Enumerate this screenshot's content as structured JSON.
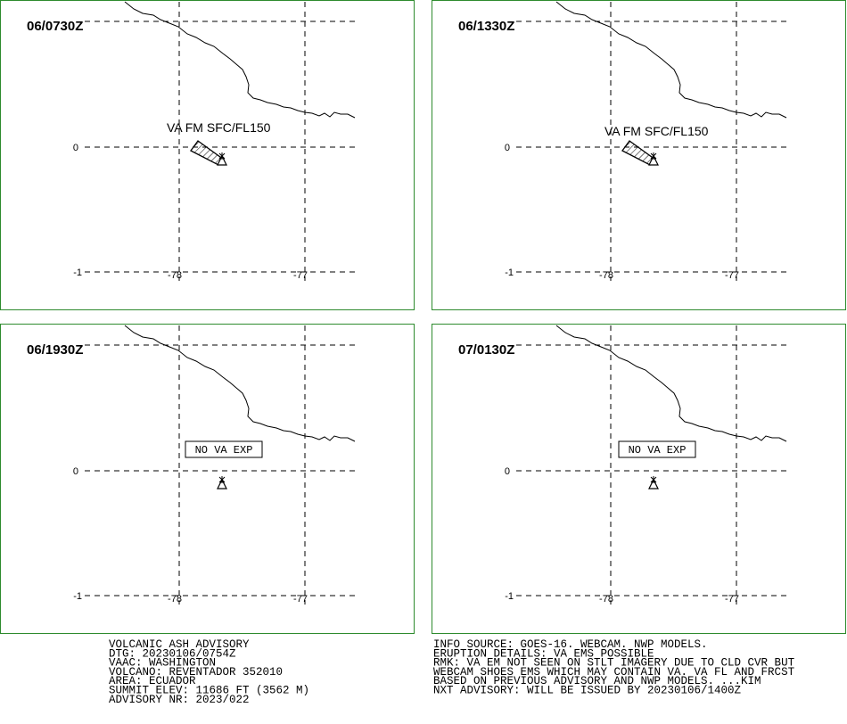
{
  "panels": [
    {
      "time": "06/0730Z",
      "ash": "VA FM SFC/FL150"
    },
    {
      "time": "06/1330Z",
      "ash": "VA FM SFC/FL150"
    },
    {
      "time": "06/1930Z",
      "ash": "NO VA EXP"
    },
    {
      "time": "07/0130Z",
      "ash": "NO VA EXP"
    }
  ],
  "grid_labels": {
    "lat": [
      "0",
      "-1"
    ],
    "lon": [
      "-78",
      "-77"
    ]
  },
  "advisory_left": [
    "VOLCANIC ASH ADVISORY",
    "DTG: 20230106/0754Z",
    "VAAC: WASHINGTON",
    "VOLCANO: REVENTADOR 352010",
    "AREA: ECUADOR",
    "SUMMIT ELEV: 11686 FT (3562 M)",
    "ADVISORY NR: 2023/022"
  ],
  "advisory_right": [
    "INFO SOURCE: GOES-16. WEBCAM. NWP MODELS.",
    "ERUPTION DETAILS: VA EMS POSSIBLE",
    "RMK: VA EM NOT SEEN ON STLT IMAGERY DUE TO CLD CVR BUT",
    "WEBCAM SHOES EMS WHICH MAY CONTAIN VA. VA FL AND FRCST",
    "BASED ON PREVIOUS ADVISORY AND NWP MODELS. ...KIM",
    "NXT ADVISORY: WILL BE ISSUED BY 20230106/1400Z"
  ]
}
